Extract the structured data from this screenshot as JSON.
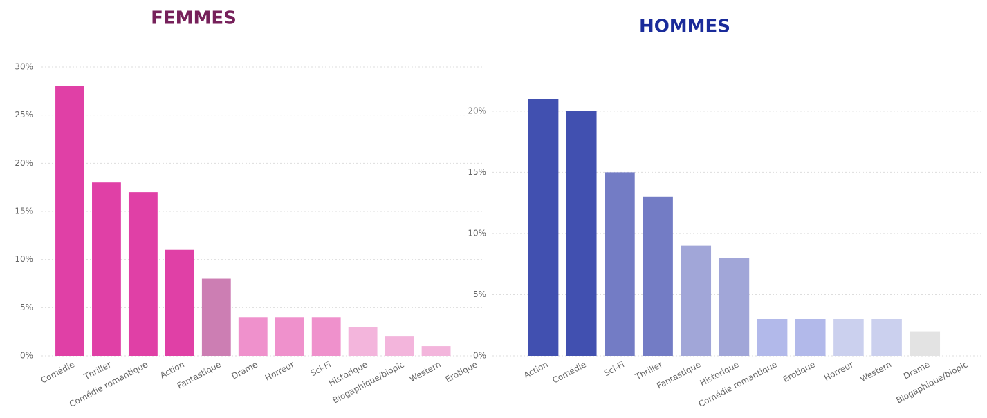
{
  "chart_data": [
    {
      "type": "bar",
      "title": "FEMMES",
      "title_color": "#76205a",
      "categories": [
        "Comédie",
        "Thriller",
        "Comédie romantique",
        "Action",
        "Fantastique",
        "Drame",
        "Horreur",
        "Sci-Fi",
        "Historique",
        "Biogaphique/biopic",
        "Western",
        "Erotique"
      ],
      "values": [
        28,
        18,
        17,
        11,
        8,
        4,
        4,
        4,
        3,
        2,
        1,
        0
      ],
      "colors": [
        "#e040a6",
        "#e040a6",
        "#e040a6",
        "#e040a6",
        "#cc7eb3",
        "#ef91cc",
        "#ef91cc",
        "#ef91cc",
        "#f3b5dc",
        "#f3b5dc",
        "#f3b5dc",
        "#f3b5dc"
      ],
      "ylim": [
        0,
        30
      ],
      "yticks": [
        {
          "value": 0,
          "label": "0%"
        },
        {
          "value": 5,
          "label": "5%"
        },
        {
          "value": 10,
          "label": "10%"
        },
        {
          "value": 15,
          "label": "15%"
        },
        {
          "value": 20,
          "label": "20%"
        },
        {
          "value": 25,
          "label": "25%"
        },
        {
          "value": 30,
          "label": "30%"
        }
      ],
      "grid": true
    },
    {
      "type": "bar",
      "title": "HOMMES",
      "title_color": "#1a2b9a",
      "categories": [
        "Action",
        "Comédie",
        "Sci-Fi",
        "Thriller",
        "Fantastique",
        "Historique",
        "Comédie romantique",
        "Erotique",
        "Horreur",
        "Western",
        "Drame",
        "Biogaphique/biopic"
      ],
      "values": [
        21,
        20,
        15,
        13,
        9,
        8,
        3,
        3,
        3,
        3,
        2,
        0
      ],
      "colors": [
        "#4150b0",
        "#4150b0",
        "#737cc5",
        "#737cc5",
        "#a1a6d8",
        "#a1a6d8",
        "#b2b9ea",
        "#b2b9ea",
        "#cbd0ee",
        "#cbd0ee",
        "#e3e3e3",
        "#e3e3e3"
      ],
      "ylim": [
        0,
        24
      ],
      "yticks": [
        {
          "value": 0,
          "label": "0%"
        },
        {
          "value": 5,
          "label": "5%"
        },
        {
          "value": 10,
          "label": "10%"
        },
        {
          "value": 15,
          "label": "15%"
        },
        {
          "value": 20,
          "label": "20%"
        }
      ],
      "grid": true
    }
  ]
}
